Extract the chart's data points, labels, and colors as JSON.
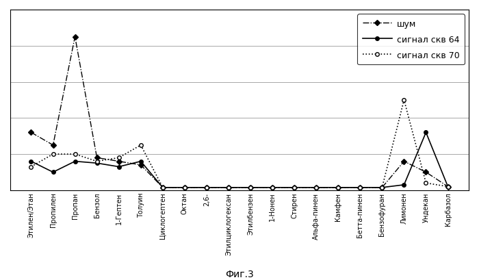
{
  "categories": [
    "Этилен/Этан",
    "Пропилен",
    "Пропан",
    "Бензол",
    "1-Гептен",
    "Толуин",
    "Циклогептен",
    "Октан",
    "2,6-",
    "Этилциклогексан",
    "Этилбензен",
    "1-Нонен",
    "Стирен",
    "Альфа-пинен",
    "Камфен",
    "Бетта-пинен",
    "Бензофуран",
    "Лимонен",
    "Ундекан",
    "Карбазол"
  ],
  "noise": [
    3.2,
    2.5,
    8.5,
    1.8,
    1.6,
    1.4,
    0.15,
    0.15,
    0.15,
    0.15,
    0.15,
    0.15,
    0.15,
    0.15,
    0.15,
    0.15,
    0.15,
    1.6,
    1.0,
    0.2
  ],
  "signal_64": [
    1.6,
    1.0,
    1.6,
    1.5,
    1.3,
    1.6,
    0.15,
    0.15,
    0.15,
    0.15,
    0.15,
    0.15,
    0.15,
    0.15,
    0.15,
    0.15,
    0.15,
    0.3,
    3.2,
    0.2
  ],
  "signal_70": [
    1.3,
    2.0,
    2.0,
    1.6,
    1.8,
    2.5,
    0.15,
    0.15,
    0.15,
    0.15,
    0.15,
    0.15,
    0.15,
    0.15,
    0.15,
    0.15,
    0.15,
    5.0,
    0.4,
    0.2
  ],
  "legend_noise": "шум",
  "legend_64": "сигнал скв 64",
  "legend_70": "сигнал скв 70",
  "title_below": "Фиг.3",
  "ylim": [
    0,
    10
  ],
  "n_gridlines": 5,
  "color": "#000000",
  "bg_color": "#ffffff",
  "tick_fontsize": 7,
  "legend_fontsize": 9
}
